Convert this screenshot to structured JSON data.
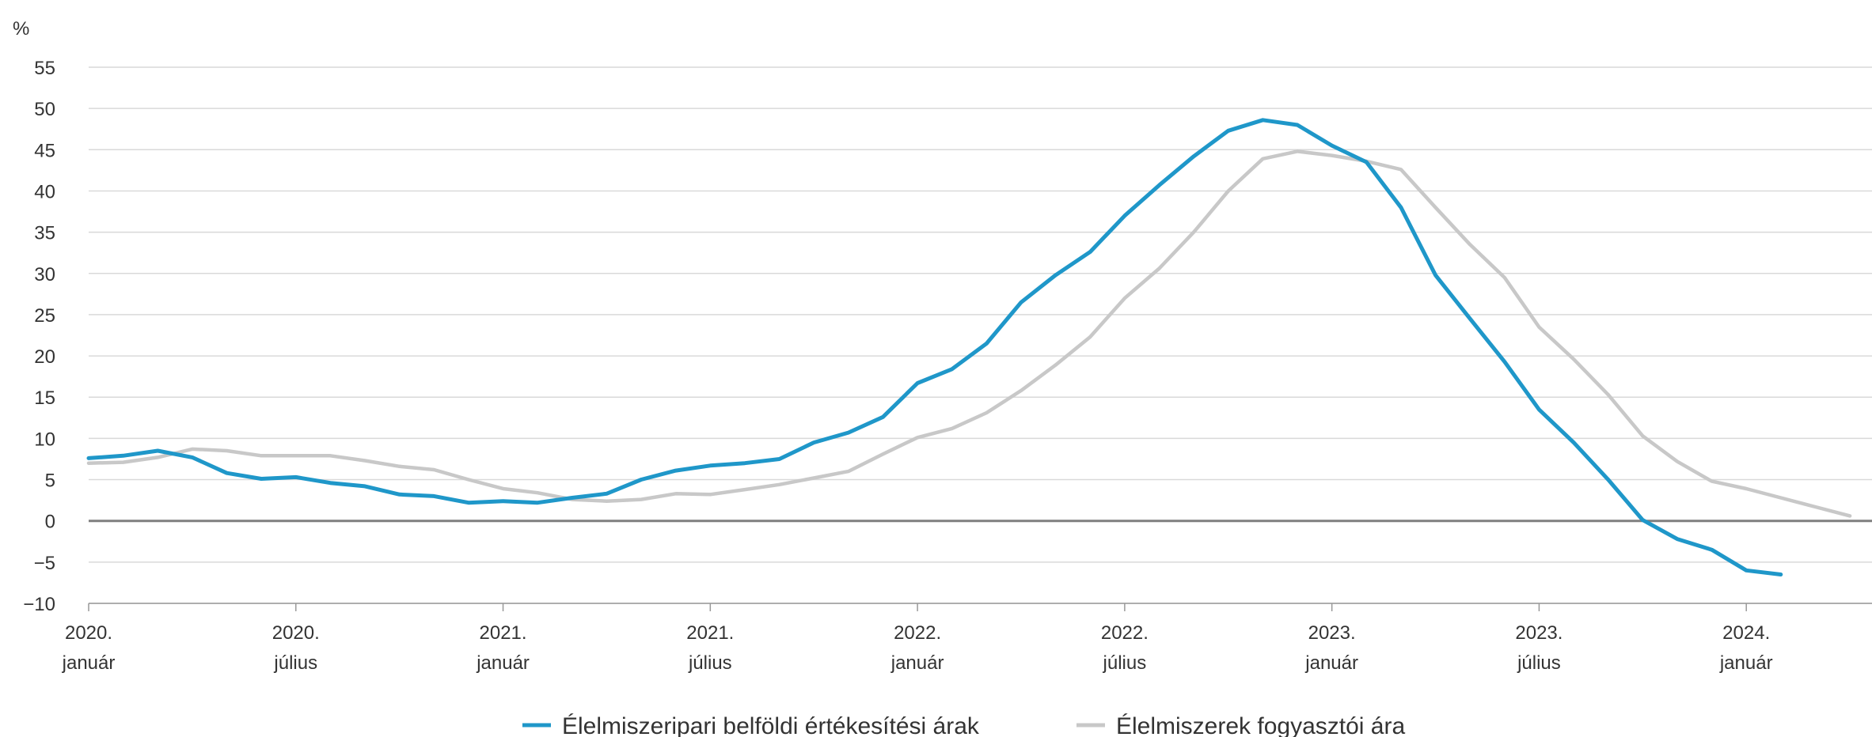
{
  "chart_data": {
    "type": "line",
    "title": "",
    "xlabel": "",
    "ylabel": "%",
    "ylim": [
      -10,
      55
    ],
    "yticks": [
      55,
      50,
      45,
      40,
      35,
      30,
      25,
      20,
      15,
      10,
      5,
      0,
      -5,
      -10
    ],
    "grid": true,
    "legend_position": "bottom",
    "x_start": "2020-01",
    "x_end": "2024-04",
    "x_ticks": [
      {
        "month": "2020-01",
        "line1": "2020.",
        "line2": "január"
      },
      {
        "month": "2020-07",
        "line1": "2020.",
        "line2": "július"
      },
      {
        "month": "2021-01",
        "line1": "2021.",
        "line2": "január"
      },
      {
        "month": "2021-07",
        "line1": "2021.",
        "line2": "július"
      },
      {
        "month": "2022-01",
        "line1": "2022.",
        "line2": "január"
      },
      {
        "month": "2022-07",
        "line1": "2022.",
        "line2": "július"
      },
      {
        "month": "2023-01",
        "line1": "2023.",
        "line2": "január"
      },
      {
        "month": "2023-07",
        "line1": "2023.",
        "line2": "július"
      },
      {
        "month": "2024-01",
        "line1": "2024.",
        "line2": "január"
      }
    ],
    "series": [
      {
        "name": "Élelmiszeripari belföldi értékesítési árak",
        "color": "#1f97c9",
        "start": "2020-01",
        "values": [
          7.6,
          7.9,
          8.5,
          7.7,
          5.8,
          5.1,
          5.3,
          4.6,
          4.2,
          3.2,
          3.0,
          2.2,
          2.4,
          2.2,
          2.8,
          3.3,
          5.0,
          6.1,
          6.7,
          7.0,
          7.5,
          9.5,
          10.7,
          12.6,
          16.7,
          18.4,
          21.5,
          26.5,
          29.8,
          32.6,
          37.0,
          40.7,
          44.2,
          47.3,
          48.6,
          48.0,
          45.5,
          43.5,
          38.0,
          29.8,
          24.5,
          19.3,
          13.5,
          9.5,
          5.0,
          0.1,
          -2.2,
          -3.5,
          -6.0,
          -6.5
        ]
      },
      {
        "name": "Élelmiszerek fogyasztói ára",
        "color": "#c8c8c8",
        "start": "2020-01",
        "values": [
          7.0,
          7.1,
          7.7,
          8.7,
          8.5,
          7.9,
          7.9,
          7.9,
          7.3,
          6.6,
          6.2,
          5.0,
          3.9,
          3.4,
          2.6,
          2.4,
          2.6,
          3.3,
          3.2,
          3.8,
          4.4,
          5.2,
          6.0,
          8.1,
          10.1,
          11.2,
          13.1,
          15.8,
          18.9,
          22.3,
          27.0,
          30.6,
          35.0,
          40.0,
          43.9,
          44.8,
          44.3,
          43.6,
          42.6,
          38.0,
          33.5,
          29.5,
          23.5,
          19.6,
          15.3,
          10.3,
          7.2,
          4.8,
          3.9,
          2.8,
          1.7,
          0.6
        ]
      }
    ]
  }
}
